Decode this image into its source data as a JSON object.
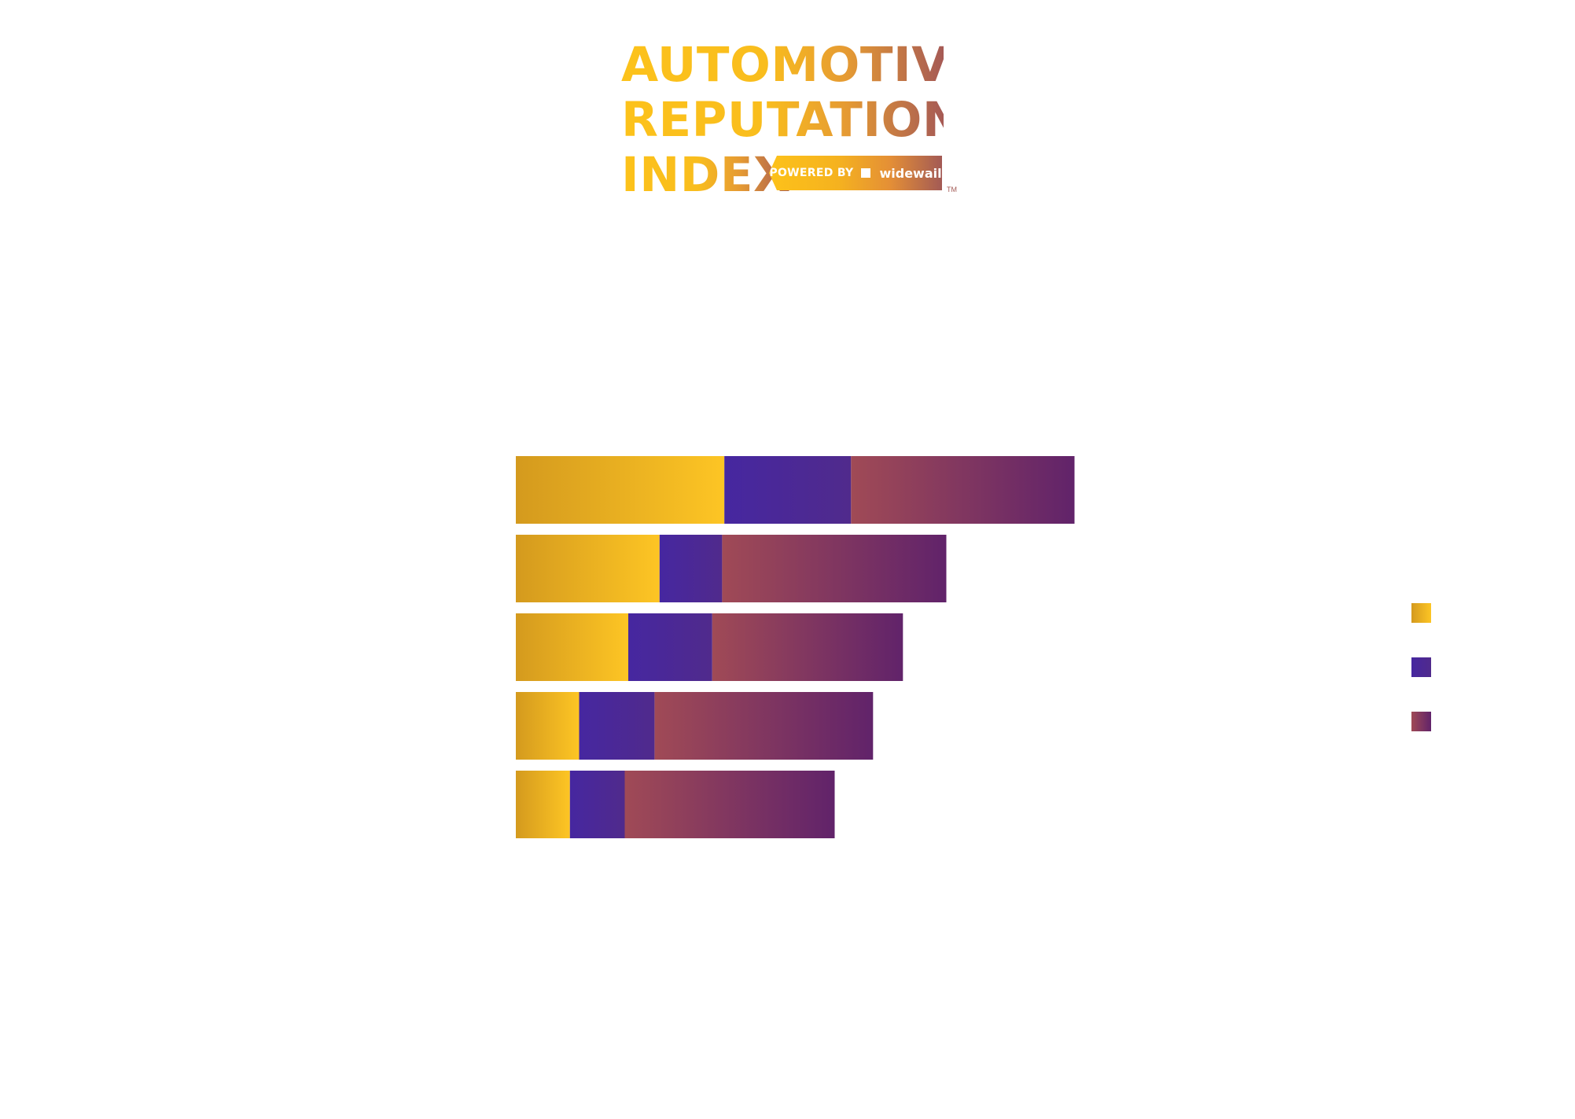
{
  "logo": {
    "line1": "AUTOMOTIVE",
    "line2": "REPUTATION",
    "line3": "INDEX",
    "powered_by": "POWERED BY",
    "brand": "widewail",
    "trademark": "TM"
  },
  "chart_data": {
    "type": "bar",
    "orientation": "horizontal",
    "stacked": true,
    "categories": [
      "",
      "",
      "",
      "",
      ""
    ],
    "series": [
      {
        "values": [
          29.3,
          20.2,
          15.8,
          8.9,
          7.6
        ],
        "color": "#fbc422"
      },
      {
        "values": [
          17.8,
          8.8,
          11.8,
          10.6,
          7.7
        ],
        "color": "#48279c"
      },
      {
        "values": [
          31.4,
          31.5,
          26.8,
          30.7,
          29.5
        ],
        "color": "#7a2e6c"
      }
    ],
    "xlim": [
      0,
      100
    ],
    "grid": false,
    "legend": "right"
  }
}
